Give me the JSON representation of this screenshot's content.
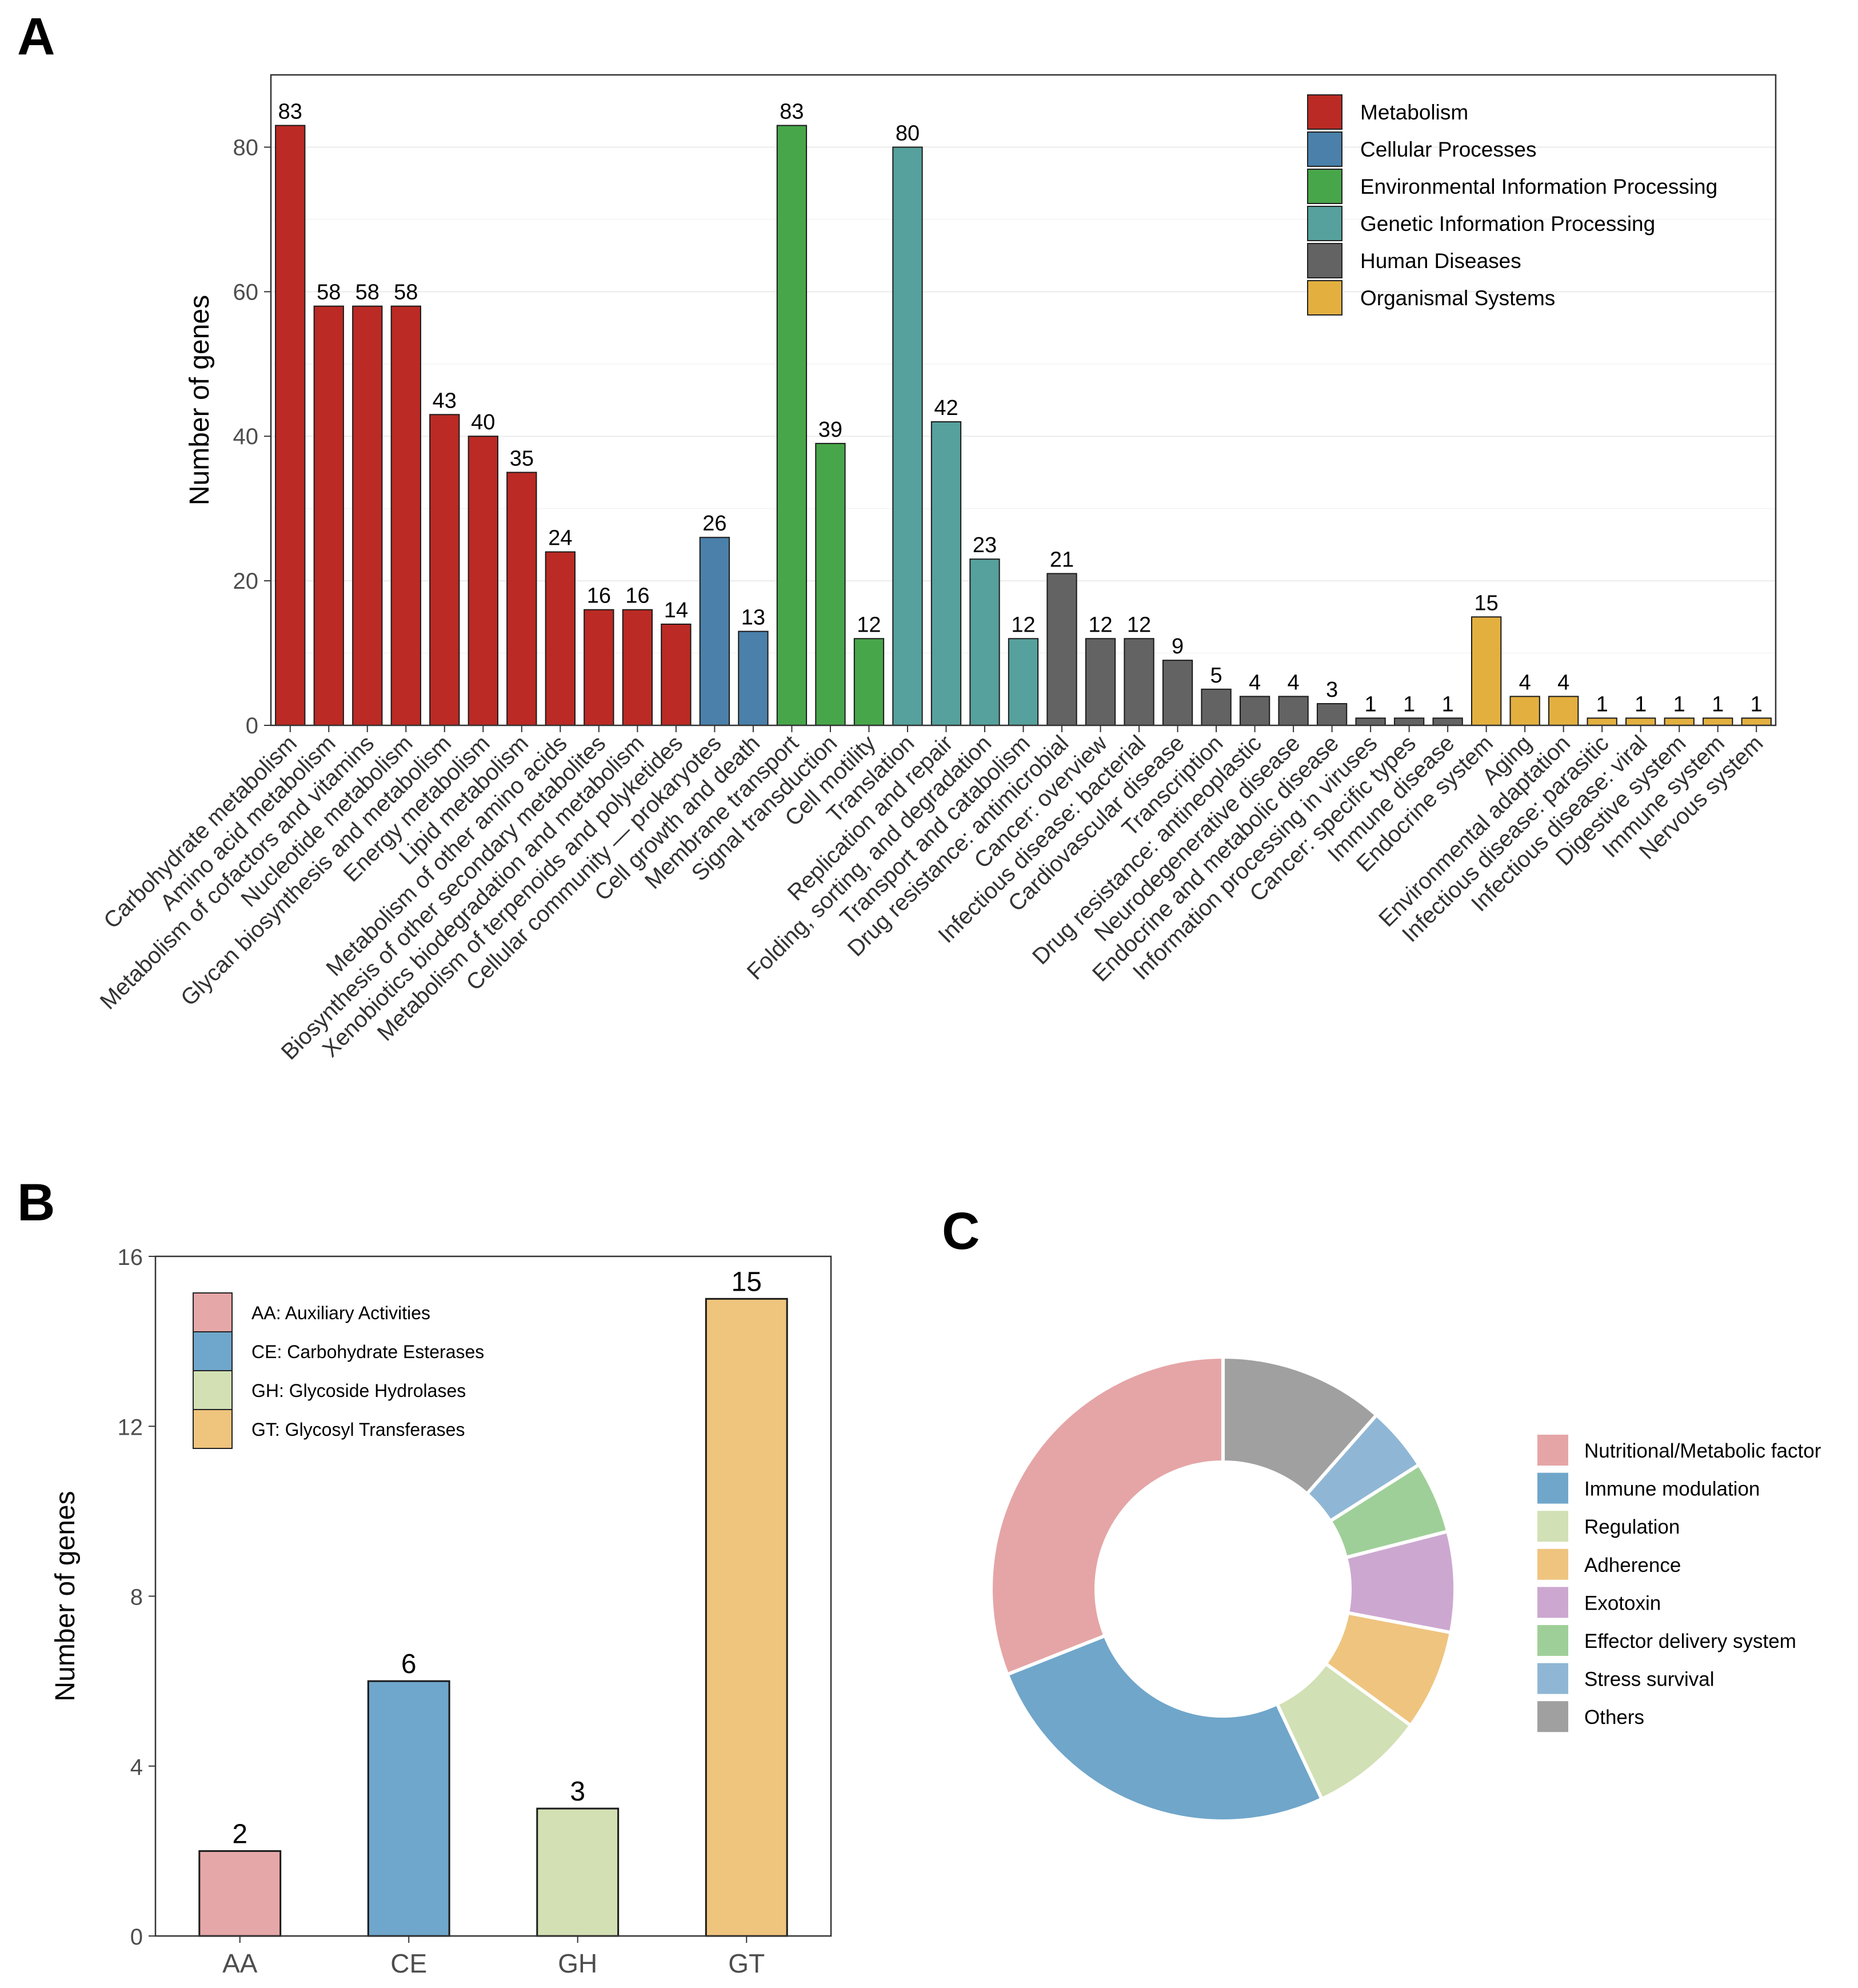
{
  "panels": {
    "a": "A",
    "b": "B",
    "c": "C"
  },
  "colors": {
    "Metabolism": "#bb2a24",
    "Cellular Processes": "#4a80aa",
    "Environmental Information Processing": "#48a64a",
    "Genetic Information Processing": "#56a19d",
    "Human Diseases": "#636363",
    "Organismal Systems": "#e3b040",
    "highlight_label": "#e0000d"
  },
  "chart_data": [
    {
      "type": "bar",
      "ylabel": "Number of genes",
      "ylim": [
        0,
        90
      ],
      "yticks": [
        0,
        20,
        40,
        60,
        80
      ],
      "legend_position": "top-right",
      "legend": [
        "Metabolism",
        "Cellular Processes",
        "Environmental Information Processing",
        "Genetic Information Processing",
        "Human Diseases",
        "Organismal Systems"
      ],
      "bars": [
        {
          "label": "Carbohydrate metabolism",
          "value": 83,
          "group": "Metabolism",
          "highlight": true
        },
        {
          "label": "Amino acid metabolism",
          "value": 58,
          "group": "Metabolism",
          "highlight": true
        },
        {
          "label": "Metabolism of cofactors and vitamins",
          "value": 58,
          "group": "Metabolism",
          "highlight": true
        },
        {
          "label": "Nucleotide metabolism",
          "value": 58,
          "group": "Metabolism",
          "highlight": true
        },
        {
          "label": "Glycan biosynthesis and metabolism",
          "value": 43,
          "group": "Metabolism"
        },
        {
          "label": "Energy metabolism",
          "value": 40,
          "group": "Metabolism"
        },
        {
          "label": "Lipid metabolism",
          "value": 35,
          "group": "Metabolism"
        },
        {
          "label": "Metabolism of other amino acids",
          "value": 24,
          "group": "Metabolism"
        },
        {
          "label": "Biosynthesis of other secondary metabolites",
          "value": 16,
          "group": "Metabolism"
        },
        {
          "label": "Xenobiotics biodegradation and metabolism",
          "value": 16,
          "group": "Metabolism"
        },
        {
          "label": "Metabolism of terpenoids and polyketides",
          "value": 14,
          "group": "Metabolism"
        },
        {
          "label": "Cellular community — prokaryotes",
          "value": 26,
          "group": "Cellular Processes"
        },
        {
          "label": "Cell growth and death",
          "value": 13,
          "group": "Cellular Processes"
        },
        {
          "label": "Membrane transport",
          "value": 83,
          "group": "Environmental Information Processing"
        },
        {
          "label": "Signal transduction",
          "value": 39,
          "group": "Environmental Information Processing"
        },
        {
          "label": "Cell motility",
          "value": 12,
          "group": "Environmental Information Processing"
        },
        {
          "label": "Translation",
          "value": 80,
          "group": "Genetic Information Processing"
        },
        {
          "label": "Replication and repair",
          "value": 42,
          "group": "Genetic Information Processing"
        },
        {
          "label": "Folding, sorting, and degradation",
          "value": 23,
          "group": "Genetic Information Processing"
        },
        {
          "label": "Transport and catabolism",
          "value": 12,
          "group": "Genetic Information Processing"
        },
        {
          "label": "Drug resistance: antimicrobial",
          "value": 21,
          "group": "Human Diseases"
        },
        {
          "label": "Cancer: overview",
          "value": 12,
          "group": "Human Diseases"
        },
        {
          "label": "Infectious disease: bacterial",
          "value": 12,
          "group": "Human Diseases"
        },
        {
          "label": "Cardiovascular disease",
          "value": 9,
          "group": "Human Diseases"
        },
        {
          "label": "Transcription",
          "value": 5,
          "group": "Human Diseases"
        },
        {
          "label": "Drug resistance: antineoplastic",
          "value": 4,
          "group": "Human Diseases"
        },
        {
          "label": "Neurodegenerative disease",
          "value": 4,
          "group": "Human Diseases"
        },
        {
          "label": "Endocrine and metabolic disease",
          "value": 3,
          "group": "Human Diseases"
        },
        {
          "label": "Information processing in viruses",
          "value": 1,
          "group": "Human Diseases"
        },
        {
          "label": "Cancer: specific types",
          "value": 1,
          "group": "Human Diseases"
        },
        {
          "label": "Immune disease",
          "value": 1,
          "group": "Human Diseases"
        },
        {
          "label": "Endocrine system",
          "value": 15,
          "group": "Organismal Systems"
        },
        {
          "label": "Aging",
          "value": 4,
          "group": "Organismal Systems"
        },
        {
          "label": "Environmental adaptation",
          "value": 4,
          "group": "Organismal Systems"
        },
        {
          "label": "Infectious disease: parasitic",
          "value": 1,
          "group": "Organismal Systems"
        },
        {
          "label": "Infectious disease: viral",
          "value": 1,
          "group": "Organismal Systems"
        },
        {
          "label": "Digestive system",
          "value": 1,
          "group": "Organismal Systems"
        },
        {
          "label": "Immune system",
          "value": 1,
          "group": "Organismal Systems"
        },
        {
          "label": "Nervous system",
          "value": 1,
          "group": "Organismal Systems"
        }
      ]
    },
    {
      "type": "bar",
      "ylabel": "Number of genes",
      "ylim": [
        0,
        16
      ],
      "yticks": [
        0,
        4,
        8,
        12,
        16
      ],
      "legend_position": "top-left",
      "categories": [
        "AA",
        "CE",
        "GH",
        "GT"
      ],
      "values": [
        2,
        6,
        3,
        15
      ],
      "colors": [
        "#e6a7a8",
        "#6fa6cb",
        "#d2e0b4",
        "#efc47d"
      ],
      "legend": [
        "AA: Auxiliary Activities",
        "CE: Carbohydrate Esterases",
        "GH: Glycoside Hydrolases",
        "GT: Glycosyl Transferases"
      ]
    },
    {
      "type": "pie",
      "donut": true,
      "legend_position": "right",
      "categories": [
        "Nutritional/Metabolic factor",
        "Immune modulation",
        "Regulation",
        "Adherence",
        "Exotoxin",
        "Effector delivery system",
        "Stress survival",
        "Others"
      ],
      "values": [
        31,
        26,
        8,
        7,
        7,
        5,
        4.5,
        11.5
      ],
      "colors": [
        "#e5a5a6",
        "#70a6ca",
        "#d2e0b5",
        "#efc47f",
        "#cca8d0",
        "#9fcf98",
        "#8fb7d5",
        "#a0a0a0"
      ]
    }
  ]
}
